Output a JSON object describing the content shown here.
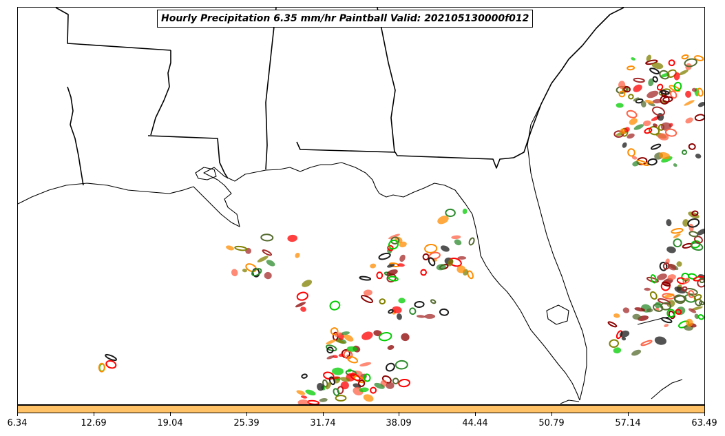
{
  "title": "Hourly Precipitation 6.35 mm/hr Paintball Valid: 202105130000f012",
  "colorbar": {
    "fill_color": "#ffc266",
    "tick_labels": [
      "6.34",
      "12.69",
      "19.04",
      "25.39",
      "31.74",
      "38.09",
      "44.44",
      "50.79",
      "57.14",
      "63.49"
    ]
  },
  "map": {
    "region": "US Gulf Coast and Southeast",
    "line_color": "#000000",
    "precip_colors": [
      "#8b0000",
      "#a52a2a",
      "#ff0000",
      "#ff8c00",
      "#808000",
      "#00cc00",
      "#2e8b2e",
      "#1a1a1a",
      "#ff6347",
      "#556b2f"
    ]
  }
}
